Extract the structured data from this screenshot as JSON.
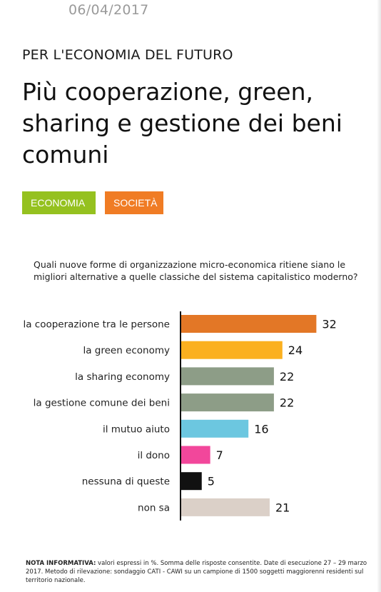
{
  "header": {
    "date": "06/04/2017",
    "kicker": "PER L'ECONOMIA DEL FUTURO",
    "title": "Più cooperazione, green, sharing e gestione dei beni comuni"
  },
  "tags": [
    {
      "label": "ECONOMIA",
      "color": "#95c11f"
    },
    {
      "label": "SOCIETÀ",
      "color": "#f07c24"
    }
  ],
  "chart_data": {
    "type": "bar",
    "orientation": "horizontal",
    "title": "Quali nuove forme di organizzazione micro-economica ritiene siano le migliori alternative a quelle classiche del sistema capitalistico moderno?",
    "unit": "%",
    "categories": [
      "la cooperazione tra le persone",
      "la green economy",
      "la sharing economy",
      "la gestione comune dei beni",
      "il mutuo aiuto",
      "il dono",
      "nessuna di queste",
      "non sa"
    ],
    "values": [
      32,
      24,
      22,
      22,
      16,
      7,
      5,
      21
    ],
    "colors": [
      "#e37726",
      "#fbb01f",
      "#8d9d87",
      "#8d9d87",
      "#6cc7e0",
      "#f2479b",
      "#111111",
      "#dbd0c8"
    ],
    "xlim": [
      0,
      32
    ],
    "grid": false,
    "data_labels": true
  },
  "footnote": {
    "label": "NOTA INFORMATIVA:",
    "text": " valori espressi in %. Somma delle risposte consentite. Date di esecuzione 27 – 29 marzo 2017. Metodo di rilevazione: sondaggio CATI - CAWI su un campione di 1500 soggetti maggiorenni residenti sul territorio nazionale."
  }
}
